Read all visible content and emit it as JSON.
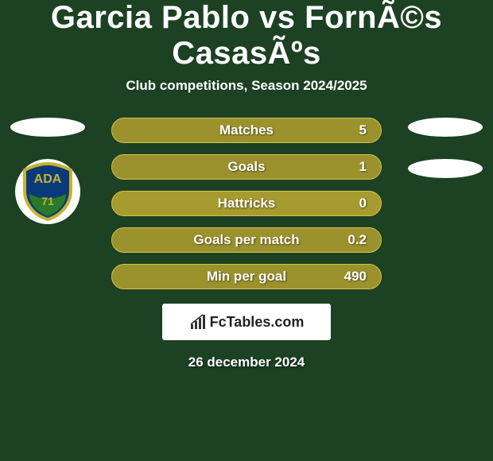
{
  "title": "Garcia Pablo vs FornÃ©s CasasÃºs",
  "subtitle": "Club competitions, Season 2024/2025",
  "colors": {
    "background": "#1c4123",
    "row_base": "#a79a2f",
    "row_fill": "#9c922d",
    "row_border": "#d1c44a",
    "text": "#ffffff",
    "brand_bg": "#ffffff",
    "brand_text": "#222222"
  },
  "badge_left": {
    "top_text": "ADA",
    "bottom_text": "71",
    "shield_fill": "#0a3a7a",
    "shield_border": "#c6b32e",
    "grass": "#2a7a2a"
  },
  "stats": [
    {
      "label": "Matches",
      "value": "5",
      "fill_pct": 100
    },
    {
      "label": "Goals",
      "value": "1",
      "fill_pct": 100
    },
    {
      "label": "Hattricks",
      "value": "0",
      "fill_pct": 0
    },
    {
      "label": "Goals per match",
      "value": "0.2",
      "fill_pct": 100
    },
    {
      "label": "Min per goal",
      "value": "490",
      "fill_pct": 100
    }
  ],
  "brand": "FcTables.com",
  "date": "26 december 2024"
}
